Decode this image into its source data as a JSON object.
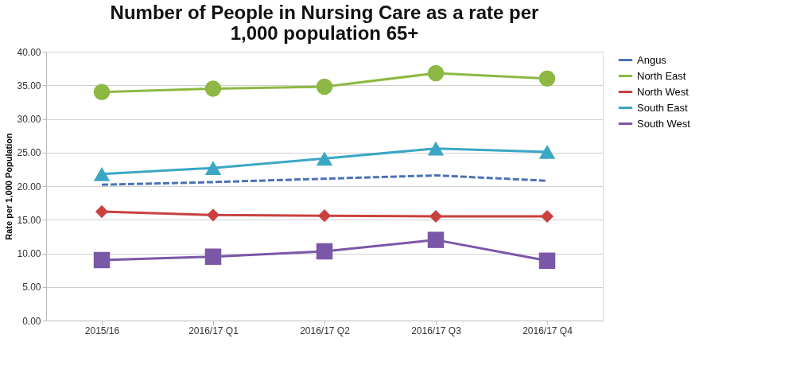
{
  "chart_data": {
    "type": "line",
    "title": "Number of People in Nursing Care as a rate per\n1,000 population 65+",
    "ylabel": "Rate per 1,000 Population",
    "categories": [
      "2015/16",
      "2016/17 Q1",
      "2016/17 Q2",
      "2016/17 Q3",
      "2016/17 Q4"
    ],
    "series": [
      {
        "name": "Angus",
        "color": "#4a72b8",
        "values": [
          20.2,
          20.6,
          21.1,
          21.6,
          20.8
        ],
        "marker": "none",
        "line_style": "dashed"
      },
      {
        "name": "North East",
        "color": "#8db843",
        "values": [
          34.0,
          34.5,
          34.8,
          36.8,
          36.0
        ],
        "marker": "circle",
        "line_style": "solid"
      },
      {
        "name": "North West",
        "color": "#c9413e",
        "values": [
          16.2,
          15.7,
          15.6,
          15.5,
          15.5
        ],
        "marker": "diamond",
        "line_style": "solid"
      },
      {
        "name": "South East",
        "color": "#3ba7c4",
        "values": [
          21.8,
          22.7,
          24.1,
          25.6,
          25.1
        ],
        "marker": "triangle",
        "line_style": "solid"
      },
      {
        "name": "South West",
        "color": "#7b57a8",
        "values": [
          9.0,
          9.5,
          10.3,
          12.0,
          8.9
        ],
        "marker": "square",
        "line_style": "solid"
      }
    ],
    "ylim": [
      0,
      40
    ],
    "yticks": [
      {
        "value": 0,
        "label": "0.00"
      },
      {
        "value": 5,
        "label": "5.00"
      },
      {
        "value": 10,
        "label": "10.00"
      },
      {
        "value": 15,
        "label": "15.00"
      },
      {
        "value": 20,
        "label": "20.00"
      },
      {
        "value": 25,
        "label": "25.00"
      },
      {
        "value": 30,
        "label": "30.00"
      },
      {
        "value": 35,
        "label": "35.00"
      },
      {
        "value": 40,
        "label": "40.00"
      }
    ],
    "grid": "y",
    "legend": "right"
  }
}
